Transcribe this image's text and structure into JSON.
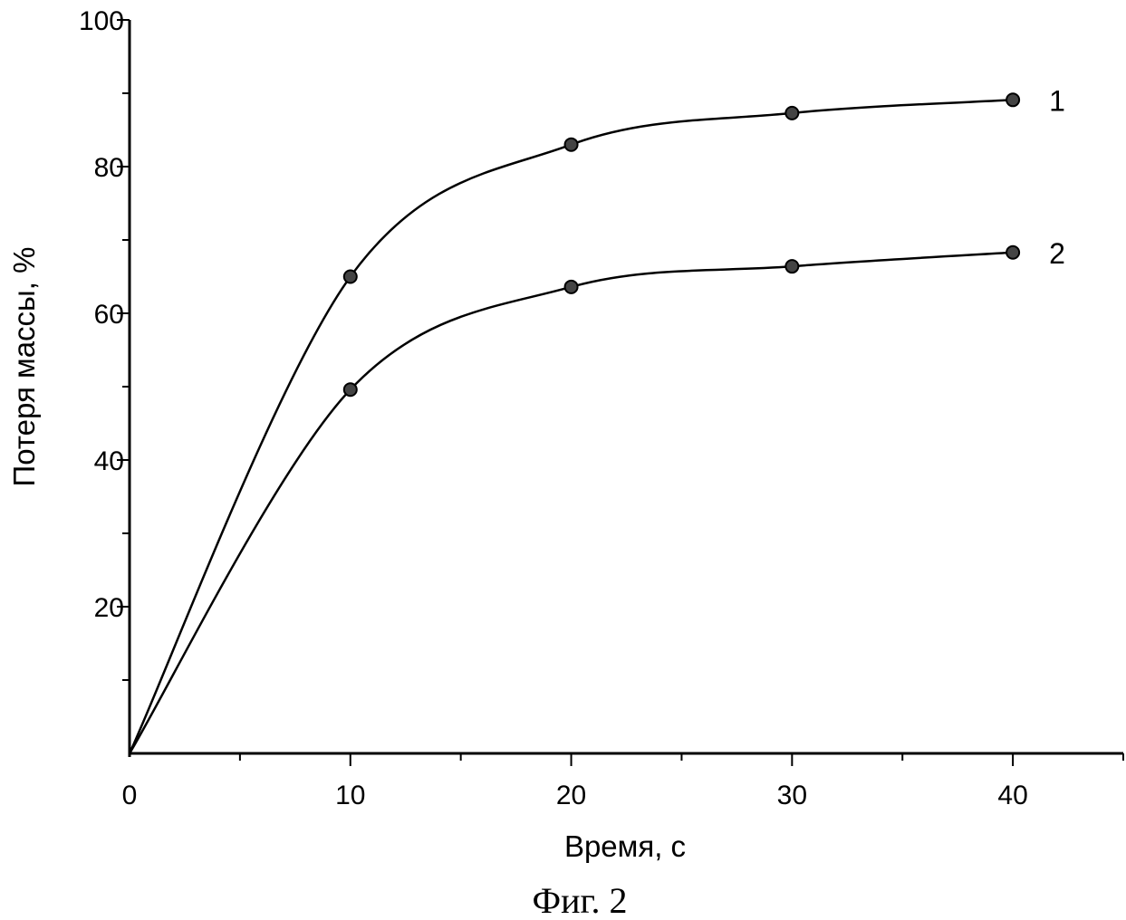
{
  "chart_data": {
    "type": "line",
    "title": "",
    "caption": "Фиг. 2",
    "xlabel": "Время, с",
    "ylabel": "Потеря массы, %",
    "xlim": [
      0,
      45
    ],
    "ylim": [
      0,
      100
    ],
    "xticks": [
      0,
      10,
      20,
      30,
      40
    ],
    "yticks": [
      20,
      40,
      60,
      80,
      100
    ],
    "x_tick_labels": [
      "0",
      "10",
      "20",
      "30",
      "40"
    ],
    "y_tick_labels": [
      "20",
      "40",
      "60",
      "80",
      "100"
    ],
    "grid": false,
    "series": [
      {
        "name": "1",
        "x": [
          0,
          10,
          20,
          30,
          40
        ],
        "values": [
          0,
          65,
          83,
          87.3,
          89.1
        ]
      },
      {
        "name": "2",
        "x": [
          0,
          10,
          20,
          30,
          40
        ],
        "values": [
          0,
          49.6,
          63.6,
          66.4,
          68.3
        ]
      }
    ]
  }
}
